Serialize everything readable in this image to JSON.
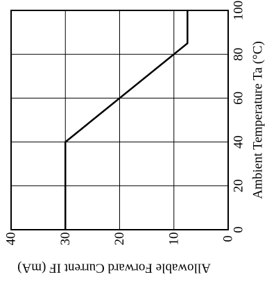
{
  "chart_data": {
    "type": "line",
    "orientation": "rotated 90 degrees counter-clockwise",
    "xlabel": "Ambient Temperature Ta (°C)",
    "ylabel": "Allowable Forward Current IF (mA)",
    "xlim": [
      0,
      100
    ],
    "ylim": [
      0,
      40
    ],
    "x_ticks": [
      "0",
      "20",
      "40",
      "60",
      "80",
      "100"
    ],
    "y_ticks": [
      "0",
      "10",
      "20",
      "30",
      "40"
    ],
    "grid": true,
    "series": [
      {
        "x": [
          0,
          40,
          85,
          100
        ],
        "y": [
          30,
          30,
          7.5,
          7.5
        ]
      }
    ]
  }
}
